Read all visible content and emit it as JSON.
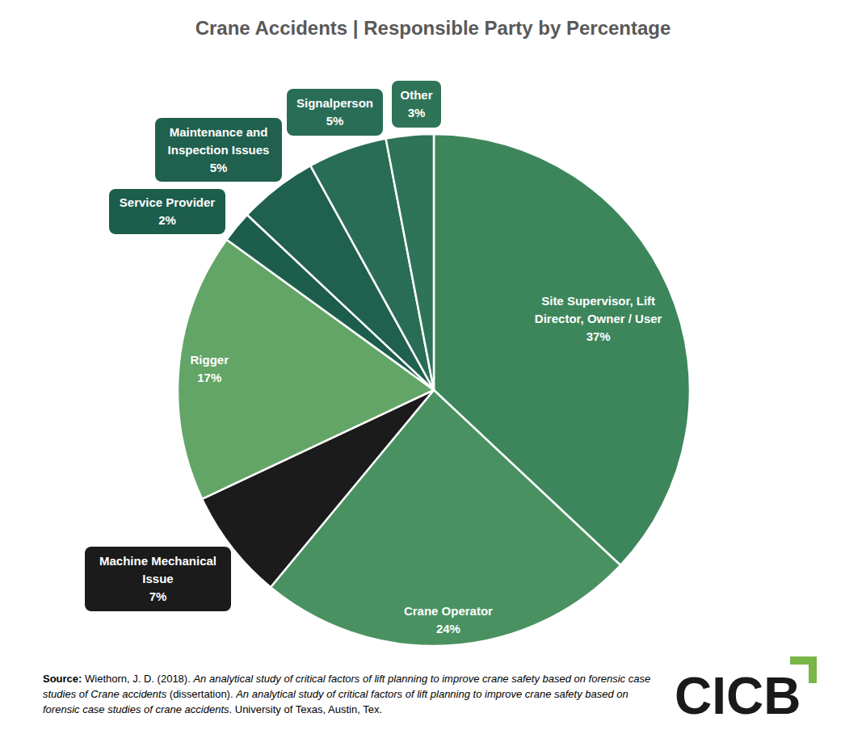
{
  "chart_data": {
    "type": "pie",
    "title": "Crane Accidents | Responsible Party by Percentage",
    "categories": [
      "Site Supervisor, Lift Director, Owner / User",
      "Crane Operator",
      "Machine Mechanical Issue",
      "Rigger",
      "Service Provider",
      "Maintenance and Inspection Issues",
      "Signalperson",
      "Other"
    ],
    "values": [
      37,
      24,
      7,
      17,
      2,
      5,
      5,
      3
    ],
    "value_labels": [
      "37%",
      "24%",
      "7%",
      "17%",
      "2%",
      "5%",
      "5%",
      "3%"
    ],
    "colors": [
      "#3d865b",
      "#4a9161",
      "#1b1b1b",
      "#63a566",
      "#1d5d4c",
      "#1f604e",
      "#2a6d57",
      "#2f7458"
    ],
    "data_labels": true,
    "source": [
      "Source:",
      " Wiethorn, J. D. (2018). ",
      "An analytical study of critical factors of lift planning to improve crane safety based on forensic case studies of Crane accidents",
      " (dissertation). ",
      "An analytical study of critical factors of lift planning to improve crane safety based on forensic case studies of crane accidents",
      ". University of Texas, Austin, Tex."
    ],
    "logo": "CICB"
  }
}
